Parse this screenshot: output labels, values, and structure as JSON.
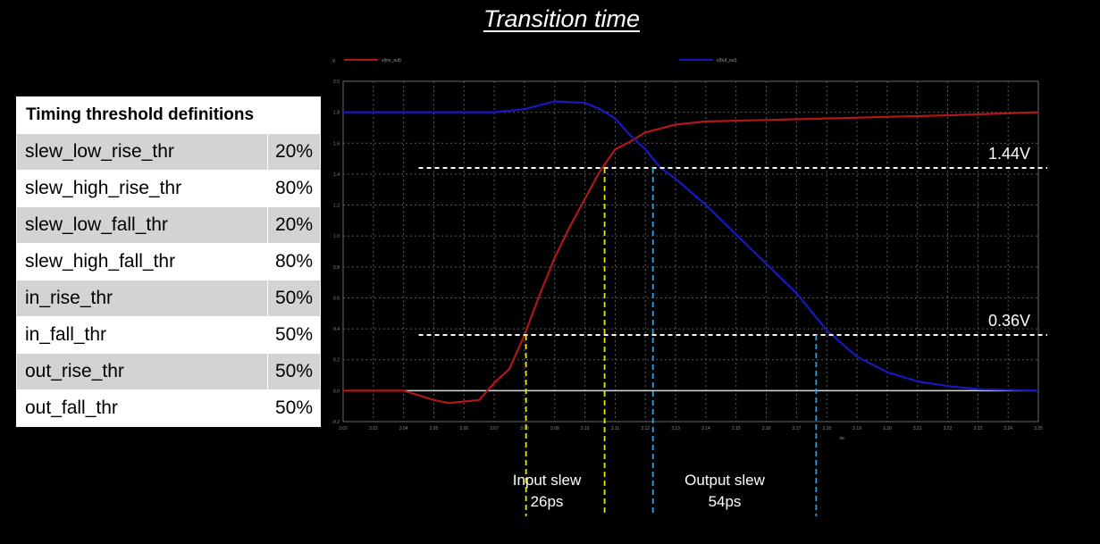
{
  "title": "Transition time",
  "table": {
    "header": "Timing threshold definitions",
    "rows": [
      {
        "name": "slew_low_rise_thr",
        "value": "20%"
      },
      {
        "name": "slew_high_rise_thr",
        "value": "80%"
      },
      {
        "name": "slew_low_fall_thr",
        "value": "20%"
      },
      {
        "name": "slew_high_fall_thr",
        "value": "80%"
      },
      {
        "name": "in_rise_thr",
        "value": "50%"
      },
      {
        "name": "in_fall_thr",
        "value": "50%"
      },
      {
        "name": "out_rise_thr",
        "value": "50%"
      },
      {
        "name": "out_fall_thr",
        "value": "50%"
      }
    ]
  },
  "chart_data": {
    "type": "line",
    "xlabel": "ns",
    "ylabel": "V",
    "xlim": [
      3.02,
      3.25
    ],
    "ylim": [
      -0.2,
      2.0
    ],
    "x_ticks": [
      "3.02",
      "3.03",
      "3.04",
      "3.05",
      "3.06",
      "3.07",
      "3.08",
      "3.09",
      "3.10",
      "3.11",
      "3.12",
      "3.13",
      "3.14",
      "3.15",
      "3.16",
      "3.17",
      "3.18",
      "3.19",
      "3.20",
      "3.21",
      "3.22",
      "3.23",
      "3.24",
      "3.25"
    ],
    "y_ticks": [
      "-0.2",
      "0.0",
      "0.2",
      "0.4",
      "0.6",
      "0.8",
      "1.0",
      "1.2",
      "1.4",
      "1.6",
      "1.8",
      "2.0"
    ],
    "series": [
      {
        "name": "v(inv_out)",
        "color": "#b01818",
        "x": [
          3.02,
          3.04,
          3.045,
          3.05,
          3.055,
          3.06,
          3.065,
          3.07,
          3.075,
          3.08,
          3.085,
          3.09,
          3.095,
          3.1,
          3.105,
          3.11,
          3.115,
          3.12,
          3.13,
          3.14,
          3.16,
          3.18,
          3.2,
          3.22,
          3.25
        ],
        "y": [
          0.0,
          0.0,
          -0.03,
          -0.06,
          -0.08,
          -0.07,
          -0.06,
          0.05,
          0.14,
          0.36,
          0.62,
          0.86,
          1.06,
          1.24,
          1.42,
          1.56,
          1.61,
          1.67,
          1.72,
          1.74,
          1.75,
          1.76,
          1.77,
          1.78,
          1.8
        ]
      },
      {
        "name": "v(buf_out)",
        "color": "#1818c0",
        "x": [
          3.02,
          3.04,
          3.06,
          3.07,
          3.08,
          3.09,
          3.1,
          3.105,
          3.11,
          3.115,
          3.12,
          3.125,
          3.13,
          3.14,
          3.15,
          3.16,
          3.17,
          3.18,
          3.19,
          3.2,
          3.21,
          3.22,
          3.23,
          3.25
        ],
        "y": [
          1.8,
          1.8,
          1.8,
          1.8,
          1.82,
          1.87,
          1.86,
          1.82,
          1.76,
          1.65,
          1.56,
          1.44,
          1.37,
          1.2,
          1.01,
          0.82,
          0.63,
          0.39,
          0.22,
          0.12,
          0.06,
          0.03,
          0.01,
          0.0
        ]
      }
    ],
    "reference_lines": [
      {
        "y": 1.44,
        "label": "1.44V"
      },
      {
        "y": 0.36,
        "label": "0.36V"
      }
    ],
    "markers": [
      {
        "x": 3.0805,
        "color": "#e6e600"
      },
      {
        "x": 3.1065,
        "color": "#e6e600"
      },
      {
        "x": 3.1225,
        "color": "#29a3e0"
      },
      {
        "x": 3.1765,
        "color": "#29a3e0"
      }
    ],
    "annotations": [
      {
        "line1": "Input slew",
        "line2": "26ps"
      },
      {
        "line1": "Output slew",
        "line2": "54ps"
      }
    ]
  }
}
